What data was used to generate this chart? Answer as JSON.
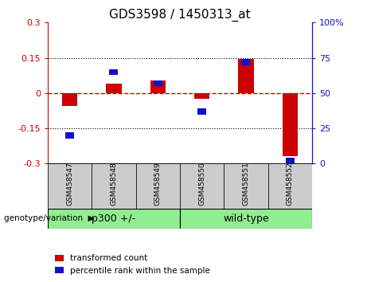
{
  "title": "GDS3598 / 1450313_at",
  "samples": [
    "GSM458547",
    "GSM458548",
    "GSM458549",
    "GSM458550",
    "GSM458551",
    "GSM458552"
  ],
  "red_values": [
    -0.055,
    0.04,
    0.055,
    -0.025,
    0.145,
    -0.27
  ],
  "blue_values_pct": [
    20,
    65,
    57,
    37,
    72,
    2
  ],
  "ylim_left": [
    -0.3,
    0.3
  ],
  "ylim_right": [
    0,
    100
  ],
  "yticks_left": [
    -0.3,
    -0.15,
    0,
    0.15,
    0.3
  ],
  "yticks_right": [
    0,
    25,
    50,
    75,
    100
  ],
  "red_color": "#cc0000",
  "blue_color": "#1111cc",
  "zero_line_color": "#cc0000",
  "legend_items": [
    {
      "label": "transformed count",
      "color": "#cc0000"
    },
    {
      "label": "percentile rank within the sample",
      "color": "#1111cc"
    }
  ],
  "group_label_prefix": "genotype/variation",
  "tick_bg_color": "#cccccc",
  "group_bg_color": "#90EE90",
  "group_defs": [
    {
      "label": "p300 +/-",
      "start": 0,
      "end": 2
    },
    {
      "label": "wild-type",
      "start": 3,
      "end": 5
    }
  ]
}
